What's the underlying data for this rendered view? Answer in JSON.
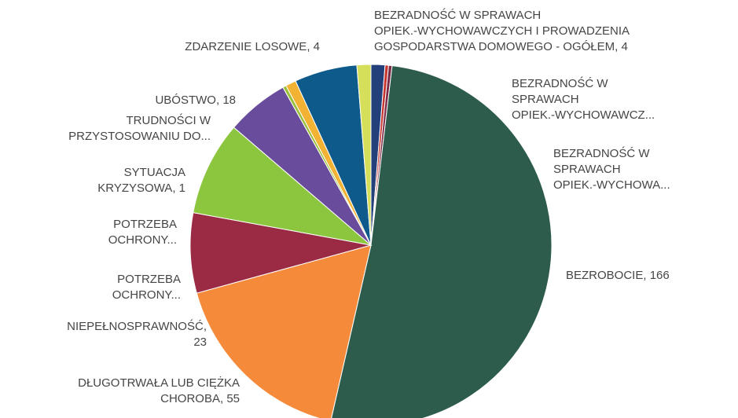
{
  "chart_data": {
    "type": "pie",
    "categories": [
      "BEZRADNOŚĆ W SPRAWACH OPIEK.-WYCHOWAWCZYCH I PROWADZENIA GOSPODARSTWA DOMOWEGO - OGÓŁEM",
      "BEZRADNOŚĆ W SPRAWACH OPIEK.-WYCHOWAWCZ...",
      "BEZRADNOŚĆ W SPRAWACH OPIEK.-WYCHOWA...",
      "BEZROBOCIE",
      "DŁUGOTRWAŁA LUB CIĘŻKA CHOROBA",
      "NIEPEŁNOSPRAWNOŚĆ",
      "POTRZEBA OCHRONY...",
      "POTRZEBA OCHRONY...",
      "SYTUACJA KRYZYSOWA",
      "TRUDNOŚCI W PRZYSTOSOWANIU DO...",
      "UBÓSTWO",
      "ZDARZENIE LOSOWE"
    ],
    "values": [
      4,
      1,
      1,
      166,
      55,
      23,
      27,
      18,
      1,
      3,
      18,
      4
    ],
    "value_labels": [
      "4",
      null,
      null,
      "166",
      "55",
      "23",
      null,
      null,
      "1",
      null,
      "18",
      "4"
    ],
    "colors": [
      "#23407a",
      "#c8372f",
      "#7d2a46",
      "#2d5c4c",
      "#f58a3a",
      "#9b2a44",
      "#8cc63f",
      "#6a4c9c",
      "#9bbf3a",
      "#f2b233",
      "#0e5a8a",
      "#d6df5a"
    ]
  }
}
